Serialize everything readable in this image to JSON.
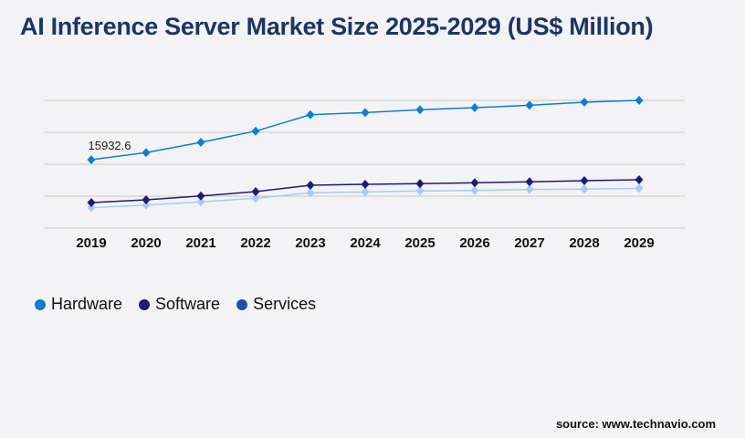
{
  "title": "AI Inference Server Market Size 2025-2029 (US$ Million)",
  "source": "source: www.technavio.com",
  "chart_data": {
    "type": "line",
    "title": "AI Inference Server Market Size 2025-2029 (US$ Million)",
    "categories": [
      "2019",
      "2020",
      "2021",
      "2022",
      "2023",
      "2024",
      "2025",
      "2026",
      "2027",
      "2028",
      "2029"
    ],
    "ylim": [
      0,
      29740
    ],
    "grid": true,
    "legend_position": "bottom-left",
    "series": [
      {
        "name": "Hardware",
        "color": "#0a7fd4",
        "legend_color": "#0a7fd4",
        "values": [
          15932.6,
          17570,
          19970,
          22580,
          26400,
          26910,
          27550,
          28040,
          28610,
          29310,
          29740
        ]
      },
      {
        "name": "Software",
        "color": "#1b1b78",
        "legend_color": "#1b1b78",
        "values": [
          5950,
          6590,
          7500,
          8500,
          9980,
          10200,
          10350,
          10560,
          10770,
          11050,
          11260
        ]
      },
      {
        "name": "Services",
        "color": "#a9c9f9",
        "legend_color": "#1f4fa8",
        "values": [
          4740,
          5370,
          6100,
          6950,
          8220,
          8430,
          8650,
          8770,
          8990,
          9070,
          9280
        ]
      }
    ],
    "data_labels": [
      {
        "series": "Hardware",
        "category": "2019",
        "text": "15932.6"
      }
    ]
  }
}
